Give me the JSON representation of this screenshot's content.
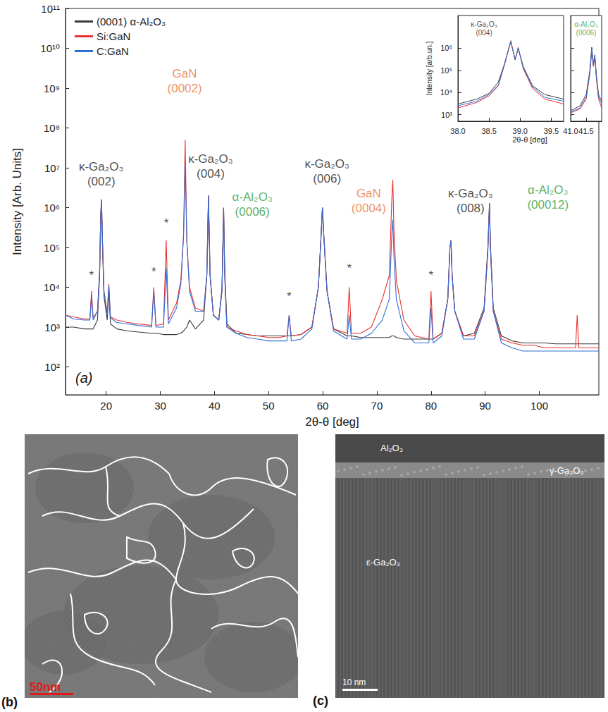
{
  "chart_data": [
    {
      "type": "line",
      "panel_label": "(a)",
      "xlabel": "2θ-θ [deg]",
      "ylabel": "Intensity [Arb. Units]",
      "log": "y",
      "grid": false,
      "legend": "upper left",
      "xlim": [
        12.5,
        111
      ],
      "xticks": [
        20,
        30,
        40,
        50,
        60,
        70,
        80,
        90,
        100
      ],
      "ylim": [
        20,
        100000000000
      ],
      "yticks": [
        {
          "value": 100,
          "label": "10²"
        },
        {
          "value": 1000,
          "label": "10³"
        },
        {
          "value": 10000,
          "label": "10⁴"
        },
        {
          "value": 100000,
          "label": "10⁵"
        },
        {
          "value": 1000000,
          "label": "10⁶"
        },
        {
          "value": 10000000,
          "label": "10⁷"
        },
        {
          "value": 100000000,
          "label": "10⁸"
        },
        {
          "value": 1000000000,
          "label": "10⁹"
        },
        {
          "value": 10000000000,
          "label": "10¹⁰"
        },
        {
          "value": 100000000000,
          "label": "10¹¹"
        }
      ],
      "x": [
        12.5,
        14,
        16,
        17.0,
        17.3,
        17.6,
        18.4,
        18.8,
        19.0,
        19.15,
        19.3,
        19.6,
        20.2,
        20.5,
        20.8,
        22,
        24,
        26,
        28.4,
        28.8,
        29.2,
        30.6,
        31.1,
        31.5,
        33.0,
        33.8,
        34.3,
        34.6,
        34.9,
        35.4,
        36.5,
        38.0,
        38.6,
        38.9,
        39.2,
        39.8,
        40.8,
        41.4,
        41.7,
        41.9,
        42.3,
        44,
        46,
        48,
        50,
        52,
        53.4,
        53.8,
        54.2,
        56,
        58,
        59.2,
        59.7,
        59.95,
        60.2,
        60.8,
        62,
        64.5,
        64.9,
        65.3,
        67,
        69,
        71,
        72.3,
        72.75,
        72.95,
        73.15,
        73.6,
        75,
        77,
        79.6,
        80.0,
        80.4,
        82,
        83.1,
        83.5,
        83.7,
        83.9,
        84.4,
        86,
        88,
        89.8,
        90.5,
        90.8,
        91.0,
        91.5,
        93,
        95,
        97,
        99,
        101,
        103,
        105,
        106.7,
        107.0,
        107.3,
        109,
        111
      ],
      "series": [
        {
          "name": "(0001) α-Al₂O₃",
          "color": "#3a3a3a",
          "values": [
            1000,
            1000,
            900,
            900,
            900,
            900,
            1500,
            20000,
            600000,
            1400000,
            150000,
            6000,
            1500,
            8000,
            1200,
            900,
            800,
            750,
            700,
            700,
            700,
            650,
            650,
            650,
            650,
            700,
            800,
            900,
            1000,
            1500,
            900,
            1500,
            20000,
            2000000,
            20000,
            2000,
            1500,
            10000,
            1000000,
            30000,
            1200,
            700,
            650,
            600,
            600,
            600,
            600,
            600,
            600,
            650,
            1000,
            10000,
            200000,
            1000000,
            200000,
            8000,
            900,
            600,
            600,
            600,
            550,
            550,
            550,
            550,
            600,
            600,
            600,
            550,
            500,
            500,
            500,
            500,
            500,
            700,
            5000,
            100000,
            150000,
            20000,
            2500,
            600,
            700,
            3000,
            100000,
            1300000,
            100000,
            3000,
            600,
            450,
            400,
            400,
            400,
            380,
            380,
            380,
            380,
            380,
            380,
            380
          ]
        },
        {
          "name": "Si:GaN",
          "color": "#e8312f",
          "values": [
            2000,
            1800,
            1600,
            1600,
            8000,
            1700,
            2500,
            25000,
            700000,
            1600000,
            200000,
            8000,
            2200,
            12000,
            1800,
            1500,
            1300,
            1200,
            1100,
            10000,
            1100,
            1200,
            150000,
            1500,
            4000,
            15000,
            200000,
            50000000,
            150000,
            10000,
            3000,
            2500,
            20000,
            2000000,
            20000,
            2000,
            1500,
            8000,
            900000,
            20000,
            1000,
            800,
            650,
            600,
            550,
            550,
            600,
            2000,
            600,
            650,
            1000,
            10000,
            200000,
            1000000,
            200000,
            8000,
            900,
            700,
            10000,
            700,
            700,
            1000,
            5000,
            20000,
            1500000,
            5000000,
            300000,
            15000,
            1500,
            600,
            500,
            8000,
            500,
            700,
            5000,
            100000,
            150000,
            20000,
            2500,
            600,
            600,
            2500,
            80000,
            1200000,
            80000,
            2500,
            500,
            400,
            350,
            350,
            300,
            300,
            300,
            300,
            2000,
            300,
            300,
            300
          ]
        },
        {
          "name": "C:GaN",
          "color": "#2f6fd8",
          "values": [
            2000,
            1600,
            1500,
            1500,
            6000,
            1500,
            2500,
            25000,
            700000,
            1600000,
            200000,
            8000,
            2000,
            11000,
            1700,
            1300,
            1200,
            1100,
            1000,
            8000,
            1000,
            1000,
            30000,
            1200,
            3000,
            12000,
            200000,
            12000000,
            150000,
            8000,
            2500,
            2500,
            20000,
            2000000,
            20000,
            2000,
            1500,
            8000,
            900000,
            20000,
            1000,
            700,
            550,
            500,
            450,
            450,
            450,
            2000,
            450,
            500,
            900,
            10000,
            200000,
            1000000,
            200000,
            8000,
            800,
            500,
            2000,
            500,
            500,
            700,
            1500,
            5000,
            200000,
            500000,
            60000,
            5000,
            800,
            400,
            400,
            3000,
            400,
            600,
            5000,
            100000,
            150000,
            20000,
            2500,
            500,
            500,
            2500,
            80000,
            1200000,
            80000,
            2500,
            400,
            300,
            250,
            250,
            250,
            250,
            250,
            250,
            250,
            250,
            250,
            250
          ]
        }
      ],
      "annotations": [
        {
          "text": "κ-Ga₂O₃\n(002)",
          "x": 19.1,
          "y": 7000000,
          "color": "#1a1a1a"
        },
        {
          "text": "GaN\n(0002)",
          "x": 34.5,
          "y": 1500000000,
          "color": "#e8743b"
        },
        {
          "text": "κ-Ga₂O₃\n(004)",
          "x": 39.3,
          "y": 11000000,
          "color": "#1a1a1a"
        },
        {
          "text": "α-Al₂O₃\n(0006)",
          "x": 47,
          "y": 1200000,
          "color": "#2e9c3a"
        },
        {
          "text": "κ-Ga₂O₃\n(006)",
          "x": 60.8,
          "y": 8000000,
          "color": "#1a1a1a"
        },
        {
          "text": "GaN\n(0004)",
          "x": 68.5,
          "y": 1500000,
          "color": "#e8743b"
        },
        {
          "text": "κ-Ga₂O₃\n(008)",
          "x": 87.3,
          "y": 1500000,
          "color": "#1a1a1a"
        },
        {
          "text": "α-Al₂O₃\n(00012)",
          "x": 101.6,
          "y": 1800000,
          "color": "#2e9c3a"
        },
        {
          "text": "*",
          "x": 17.3,
          "y": 20000,
          "color": "#1a1a1a"
        },
        {
          "text": "*",
          "x": 28.8,
          "y": 25000,
          "color": "#1a1a1a"
        },
        {
          "text": "*",
          "x": 31.1,
          "y": 400000,
          "color": "#1a1a1a"
        },
        {
          "text": "*",
          "x": 53.8,
          "y": 6000,
          "color": "#1a1a1a"
        },
        {
          "text": "*",
          "x": 64.9,
          "y": 30000,
          "color": "#1a1a1a"
        },
        {
          "text": "*",
          "x": 80.0,
          "y": 20000,
          "color": "#1a1a1a"
        }
      ]
    },
    {
      "type": "line",
      "xlabel": "2θ-θ [deg]",
      "ylabel": "Intensity [arb.un.]",
      "log": "y",
      "grid": false,
      "ylim": [
        500,
        30000000
      ],
      "yticks": [
        {
          "value": 1000,
          "label": "10³"
        },
        {
          "value": 10000,
          "label": "10⁴"
        },
        {
          "value": 100000,
          "label": "10⁵"
        },
        {
          "value": 1000000,
          "label": "10⁶"
        }
      ],
      "segments": [
        {
          "xlim": [
            38.0,
            39.7
          ],
          "xticks": [
            {
              "value": 38,
              "label": "38.0"
            },
            38.5,
            {
              "value": 39,
              "label": "39.0"
            },
            39.5
          ],
          "x": [
            38.0,
            38.3,
            38.5,
            38.65,
            38.75,
            38.85,
            38.92,
            38.97,
            39.05,
            39.2,
            39.4,
            39.7
          ],
          "series": [
            {
              "name": "(0001) α-Al₂O₃",
              "color": "#3a3a3a",
              "values": [
                3000,
                5000,
                9000,
                30000,
                200000,
                2000000,
                300000,
                1000000,
                150000,
                20000,
                8000,
                5000
              ]
            },
            {
              "name": "Si:GaN",
              "color": "#e8312f",
              "values": [
                2000,
                3500,
                7000,
                20000,
                200000,
                2200000,
                300000,
                1100000,
                120000,
                15000,
                5000,
                3000
              ]
            },
            {
              "name": "C:GaN",
              "color": "#2f6fd8",
              "values": [
                2500,
                4000,
                8000,
                22000,
                180000,
                2000000,
                300000,
                1000000,
                130000,
                18000,
                6000,
                4000
              ]
            }
          ],
          "annotations": [
            {
              "text": "κ-Ga₂O₃\n(004)",
              "x": 38.42,
              "y": 8000000,
              "color": "#1a1a1a"
            }
          ]
        },
        {
          "xlim": [
            41.0,
            42.0
          ],
          "xticks": [
            {
              "value": 41,
              "label": "41.0"
            },
            41.5
          ],
          "x": [
            41.0,
            41.3,
            41.5,
            41.62,
            41.68,
            41.73,
            41.78,
            41.83,
            41.9,
            42.0
          ],
          "series": [
            {
              "name": "(0001) α-Al₂O₃",
              "color": "#3a3a3a",
              "values": [
                1500,
                2500,
                8000,
                100000,
                1100000,
                200000,
                500000,
                60000,
                8000,
                4000
              ]
            },
            {
              "name": "Si:GaN",
              "color": "#e8312f",
              "values": [
                1200,
                1800,
                5000,
                70000,
                800000,
                150000,
                400000,
                40000,
                5000,
                2000
              ]
            },
            {
              "name": "C:GaN",
              "color": "#2f6fd8",
              "values": [
                1300,
                2000,
                6000,
                80000,
                900000,
                170000,
                450000,
                50000,
                6000,
                3000
              ]
            }
          ],
          "annotations": [
            {
              "text": "α-Al₂O₃\n(0006)",
              "x": 41.5,
              "y": 8000000,
              "color": "#2e9c3a"
            }
          ]
        }
      ]
    }
  ],
  "panels": [
    {
      "label": "(b)",
      "scale_bar": "50nm"
    },
    {
      "label": "(c)",
      "scale_bar": "10 nm",
      "regions": [
        "Al₂O₃",
        "γ-Ga₂O₃",
        "ε-Ga₂O₃"
      ]
    }
  ]
}
